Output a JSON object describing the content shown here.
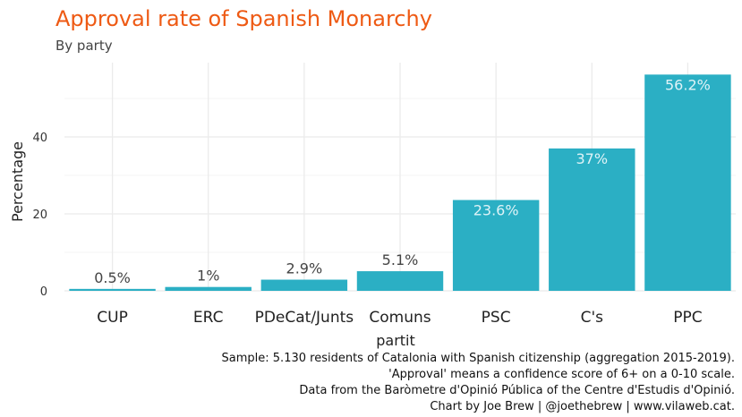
{
  "chart_data": {
    "type": "bar",
    "title": "Approval rate of Spanish Monarchy",
    "subtitle": "By party",
    "xlabel": "partit",
    "ylabel": "Percentage",
    "categories": [
      "CUP",
      "ERC",
      "PDeCat/Junts",
      "Comuns",
      "PSC",
      "C's",
      "PPC"
    ],
    "values": [
      0.5,
      1,
      2.9,
      5.1,
      23.6,
      37,
      56.2
    ],
    "data_labels": [
      "0.5%",
      "1%",
      "2.9%",
      "5.1%",
      "23.6%",
      "37%",
      "56.2%"
    ],
    "yticks": [
      0,
      20,
      40
    ],
    "ylim": [
      0,
      59
    ],
    "grid": true,
    "legend": "none",
    "bar_color": "#2bafc4",
    "caption": [
      "Sample: 5.130 residents of Catalonia with Spanish citizenship (aggregation 2015-2019).",
      "'Approval' means a confidence score of 6+ on a 0-10 scale.",
      "Data from the Baròmetre d'Opinió Pública of the Centre d'Estudis d'Opinió.",
      "Chart by Joe Brew | @joethebrew | www.vilaweb.cat."
    ]
  },
  "colors": {
    "title": "#ee5a14",
    "label_inside": "#dff3f7",
    "label_outside": "#444444",
    "grid": "#ebebeb"
  }
}
